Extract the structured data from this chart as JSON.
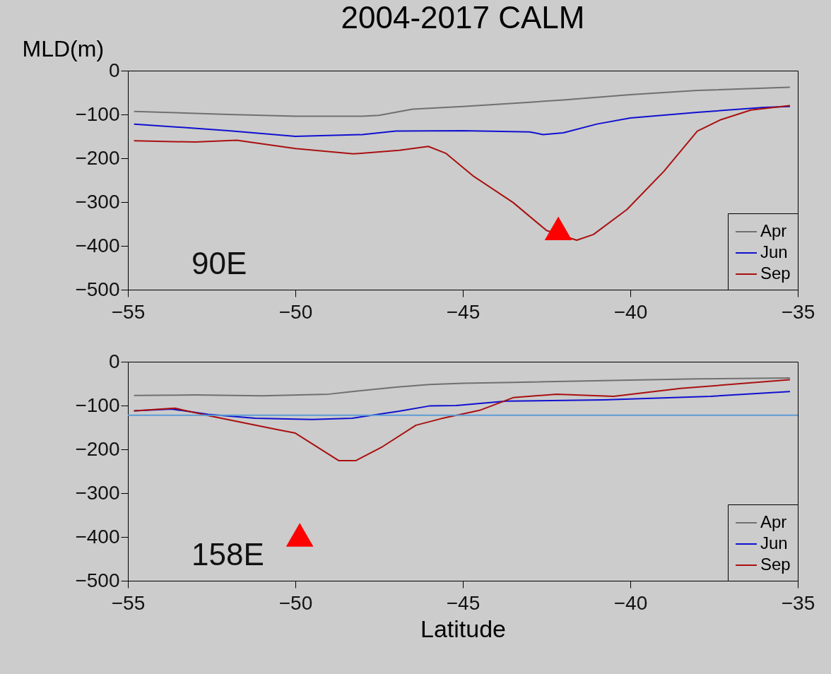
{
  "chart_data": [
    {
      "type": "line",
      "title": "2004-2017    CALM",
      "ylabel": "MLD(m)",
      "annotations": [
        "90E"
      ],
      "xlim": [
        -55,
        -35
      ],
      "xticks": [
        -55,
        -50,
        -45,
        -40,
        -35
      ],
      "ylim": [
        -500,
        0
      ],
      "yticks": [
        -500,
        -400,
        -300,
        -200,
        -100,
        0
      ],
      "legend": "bottom right",
      "series": [
        {
          "name": "Apr",
          "color": "#707070",
          "x": [
            -54.8,
            -52,
            -50,
            -48,
            -47.5,
            -46.5,
            -45,
            -43,
            -42,
            -40,
            -38,
            -36,
            -35.25
          ],
          "values": [
            -93,
            -100,
            -104,
            -104,
            -102,
            -88,
            -82,
            -72,
            -67,
            -55,
            -45,
            -40,
            -38
          ]
        },
        {
          "name": "Jun",
          "color": "#1010d0",
          "x": [
            -54.8,
            -52,
            -50,
            -48,
            -47,
            -45,
            -43,
            -42.6,
            -42,
            -41,
            -40,
            -38,
            -36,
            -35.25
          ],
          "values": [
            -122,
            -137,
            -150,
            -146,
            -138,
            -137,
            -140,
            -146,
            -142,
            -122,
            -108,
            -95,
            -84,
            -82
          ]
        },
        {
          "name": "Sep",
          "color": "#aa1010",
          "x": [
            -54.8,
            -53,
            -51.75,
            -50,
            -48.27,
            -46.9,
            -46.03,
            -45.5,
            -44.7,
            -43.5,
            -42.5,
            -41.6,
            -41.1,
            -40.1,
            -39,
            -38,
            -37.3,
            -36.4,
            -35.25
          ],
          "values": [
            -160,
            -163,
            -159,
            -178,
            -190,
            -182,
            -173,
            -189,
            -240,
            -301,
            -365,
            -387,
            -374,
            -317,
            -230,
            -138,
            -112,
            -90,
            -80
          ]
        },
        {
          "type": "scatter",
          "marker": "triangle",
          "color": "#ff0000",
          "x": [
            -42.15
          ],
          "values": [
            -360
          ]
        }
      ]
    },
    {
      "type": "line",
      "xlabel": "Latitude",
      "annotations": [
        "158E"
      ],
      "xlim": [
        -55,
        -35
      ],
      "xticks": [
        -55,
        -50,
        -45,
        -40,
        -35
      ],
      "ylim": [
        -500,
        0
      ],
      "yticks": [
        -500,
        -400,
        -300,
        -200,
        -100,
        0
      ],
      "legend": "bottom right",
      "ref_lines": [
        {
          "axis": "y",
          "value": -122,
          "color": "#5b9bd5"
        }
      ],
      "series": [
        {
          "name": "Apr",
          "color": "#707070",
          "x": [
            -54.8,
            -53,
            -51,
            -49,
            -48.3,
            -47,
            -46,
            -45,
            -43.5,
            -40,
            -38,
            -35.25
          ],
          "values": [
            -77,
            -76,
            -78,
            -74,
            -68,
            -58,
            -52,
            -49,
            -47,
            -42,
            -39,
            -37
          ]
        },
        {
          "name": "Jun",
          "color": "#1010d0",
          "x": [
            -54.8,
            -53.7,
            -52.6,
            -51.2,
            -49.5,
            -48.3,
            -46.9,
            -46,
            -45.2,
            -43.7,
            -40.8,
            -37.6,
            -35.25
          ],
          "values": [
            -112,
            -108,
            -120,
            -129,
            -132,
            -129,
            -113,
            -101,
            -100,
            -90,
            -87,
            -79,
            -68
          ]
        },
        {
          "name": "Sep",
          "color": "#aa1010",
          "x": [
            -54.8,
            -53.6,
            -52.6,
            -50.6,
            -50,
            -48.7,
            -48.2,
            -47.4,
            -46.4,
            -45.65,
            -44.5,
            -43.5,
            -42.2,
            -40.5,
            -38.5,
            -35.25
          ],
          "values": [
            -112,
            -106,
            -123,
            -154,
            -163,
            -226,
            -226,
            -194,
            -145,
            -130,
            -111,
            -82,
            -74,
            -79,
            -61,
            -41
          ]
        },
        {
          "type": "scatter",
          "marker": "triangle",
          "color": "#ff0000",
          "x": [
            -49.87
          ],
          "values": [
            -395
          ]
        }
      ]
    }
  ]
}
